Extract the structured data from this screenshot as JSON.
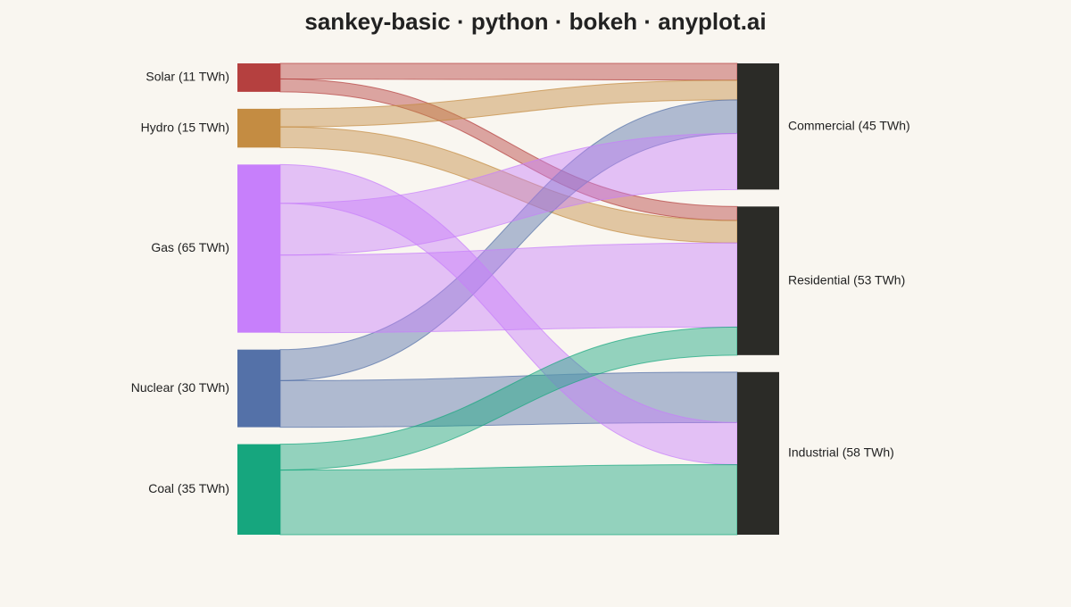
{
  "chart_data": {
    "type": "sankey",
    "title": "sankey-basic · python · bokeh · anyplot.ai",
    "sources": [
      {
        "label": "Solar (11 TWh)",
        "value": 11,
        "color": "#b5403f"
      },
      {
        "label": "Hydro (15 TWh)",
        "value": 15,
        "color": "#c48c42"
      },
      {
        "label": "Gas (65 TWh)",
        "value": 65,
        "color": "#c77ffb"
      },
      {
        "label": "Nuclear (30 TWh)",
        "value": 30,
        "color": "#5471a8"
      },
      {
        "label": "Coal (35 TWh)",
        "value": 35,
        "color": "#16a67e"
      }
    ],
    "targets": [
      {
        "label": "Commercial (45 TWh)",
        "value": 45,
        "color": "#2b2b27"
      },
      {
        "label": "Residential (53 TWh)",
        "value": 53,
        "color": "#2b2b27"
      },
      {
        "label": "Industrial (58 TWh)",
        "value": 58,
        "color": "#2b2b27"
      }
    ],
    "links": [
      {
        "source": 0,
        "target": 0,
        "value": 6
      },
      {
        "source": 0,
        "target": 1,
        "value": 5
      },
      {
        "source": 1,
        "target": 0,
        "value": 7
      },
      {
        "source": 1,
        "target": 1,
        "value": 8
      },
      {
        "source": 3,
        "target": 0,
        "value": 12
      },
      {
        "source": 3,
        "target": 2,
        "value": 18
      },
      {
        "source": 2,
        "target": 2,
        "value": 15
      },
      {
        "source": 2,
        "target": 0,
        "value": 20
      },
      {
        "source": 2,
        "target": 1,
        "value": 30
      },
      {
        "source": 4,
        "target": 1,
        "value": 10
      },
      {
        "source": 4,
        "target": 2,
        "value": 25
      }
    ]
  }
}
